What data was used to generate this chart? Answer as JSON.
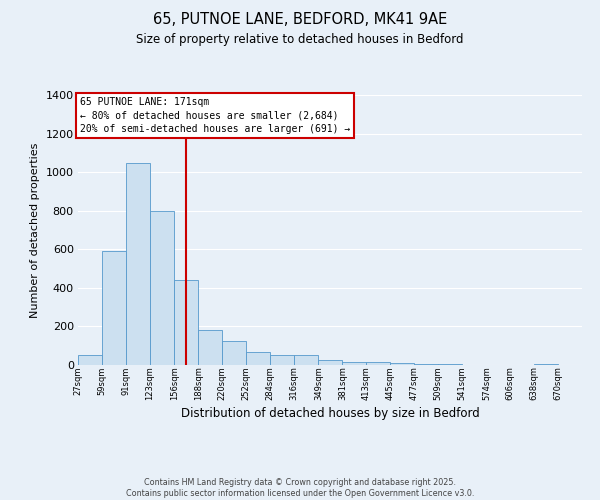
{
  "title": "65, PUTNOE LANE, BEDFORD, MK41 9AE",
  "subtitle": "Size of property relative to detached houses in Bedford",
  "xlabel": "Distribution of detached houses by size in Bedford",
  "ylabel": "Number of detached properties",
  "bar_color_face": "#cce0f0",
  "bar_color_edge": "#5599cc",
  "background_color": "#e8f0f8",
  "grid_color": "#ffffff",
  "vline_x": 171,
  "vline_color": "#cc0000",
  "annotation_title": "65 PUTNOE LANE: 171sqm",
  "annotation_line1": "← 80% of detached houses are smaller (2,684)",
  "annotation_line2": "20% of semi-detached houses are larger (691) →",
  "annotation_box_color": "#ffffff",
  "annotation_box_edge": "#cc0000",
  "footer_line1": "Contains HM Land Registry data © Crown copyright and database right 2025.",
  "footer_line2": "Contains public sector information licensed under the Open Government Licence v3.0.",
  "bin_edges": [
    27,
    59,
    91,
    123,
    156,
    188,
    220,
    252,
    284,
    316,
    349,
    381,
    413,
    445,
    477,
    509,
    541,
    574,
    606,
    638,
    670
  ],
  "bar_heights": [
    50,
    590,
    1050,
    800,
    440,
    180,
    125,
    65,
    50,
    50,
    25,
    15,
    15,
    10,
    5,
    5,
    2,
    2,
    0,
    5
  ],
  "ylim": [
    0,
    1400
  ],
  "yticks": [
    0,
    200,
    400,
    600,
    800,
    1000,
    1200,
    1400
  ],
  "tick_labels": [
    "27sqm",
    "59sqm",
    "91sqm",
    "123sqm",
    "156sqm",
    "188sqm",
    "220sqm",
    "252sqm",
    "284sqm",
    "316sqm",
    "349sqm",
    "381sqm",
    "413sqm",
    "445sqm",
    "477sqm",
    "509sqm",
    "541sqm",
    "574sqm",
    "606sqm",
    "638sqm",
    "670sqm"
  ]
}
